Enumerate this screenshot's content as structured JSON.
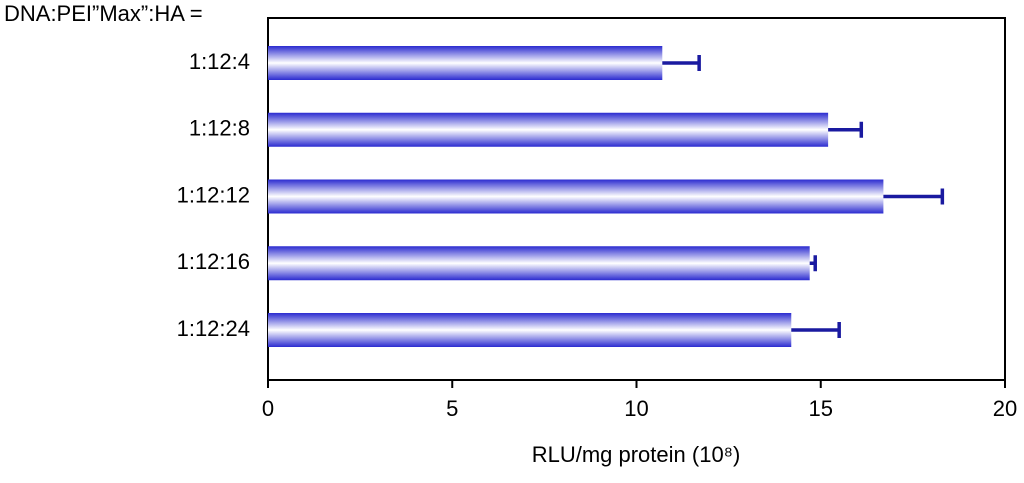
{
  "chart_data": {
    "type": "bar",
    "orientation": "horizontal",
    "y_label": "DNA:PEI”Max”:HA =",
    "x_label": "RLU/mg protein (10⁸)",
    "categories": [
      "1:12:4",
      "1:12:8",
      "1:12:12",
      "1:12:16",
      "1:12:24"
    ],
    "values": [
      10.7,
      15.2,
      16.7,
      14.7,
      14.2
    ],
    "errors": [
      1.0,
      0.9,
      1.6,
      0.15,
      1.3
    ],
    "color": "#2b2bd0",
    "error_color": "#1a1aa0",
    "xlim": [
      0,
      20
    ],
    "xticks": [
      0,
      5,
      10,
      15,
      20
    ]
  }
}
